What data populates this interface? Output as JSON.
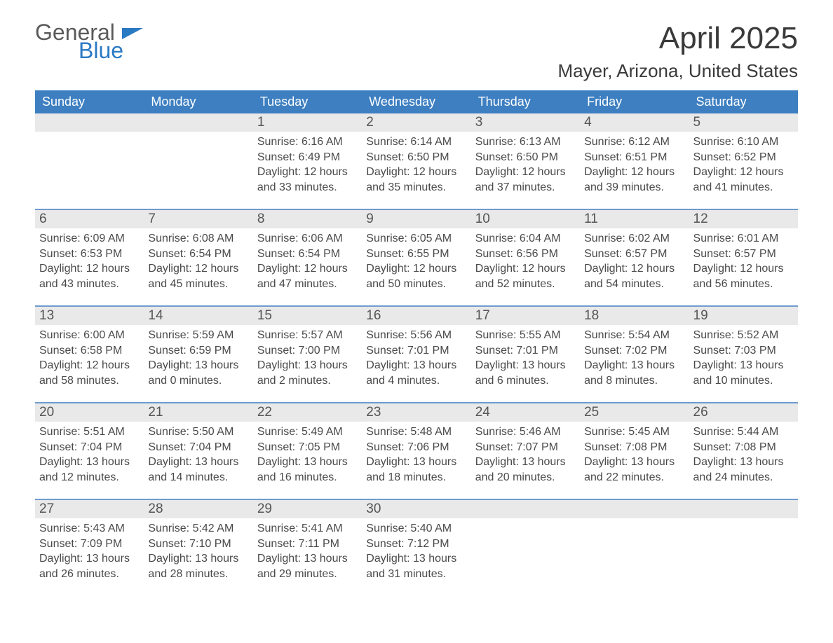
{
  "branding": {
    "logo_word1": "General",
    "logo_word2": "Blue",
    "logo_word1_color": "#5a5a5a",
    "logo_word2_color": "#2a79c3",
    "flag_color": "#2a79c3"
  },
  "header": {
    "title": "April 2025",
    "location": "Mayer, Arizona, United States",
    "title_fontsize": 44,
    "location_fontsize": 26,
    "text_color": "#3a3a3a"
  },
  "colors": {
    "weekday_header_bg": "#3d7fc1",
    "weekday_header_text": "#ffffff",
    "week_top_border": "#6e9bce",
    "daynum_bar_bg": "#e9e9e9",
    "body_text": "#4a4a4a",
    "page_bg": "#ffffff"
  },
  "weekdays": [
    "Sunday",
    "Monday",
    "Tuesday",
    "Wednesday",
    "Thursday",
    "Friday",
    "Saturday"
  ],
  "weeks": [
    [
      {
        "day": "",
        "sunrise": "",
        "sunset": "",
        "daylight": ""
      },
      {
        "day": "",
        "sunrise": "",
        "sunset": "",
        "daylight": ""
      },
      {
        "day": "1",
        "sunrise": "Sunrise: 6:16 AM",
        "sunset": "Sunset: 6:49 PM",
        "daylight": "Daylight: 12 hours and 33 minutes."
      },
      {
        "day": "2",
        "sunrise": "Sunrise: 6:14 AM",
        "sunset": "Sunset: 6:50 PM",
        "daylight": "Daylight: 12 hours and 35 minutes."
      },
      {
        "day": "3",
        "sunrise": "Sunrise: 6:13 AM",
        "sunset": "Sunset: 6:50 PM",
        "daylight": "Daylight: 12 hours and 37 minutes."
      },
      {
        "day": "4",
        "sunrise": "Sunrise: 6:12 AM",
        "sunset": "Sunset: 6:51 PM",
        "daylight": "Daylight: 12 hours and 39 minutes."
      },
      {
        "day": "5",
        "sunrise": "Sunrise: 6:10 AM",
        "sunset": "Sunset: 6:52 PM",
        "daylight": "Daylight: 12 hours and 41 minutes."
      }
    ],
    [
      {
        "day": "6",
        "sunrise": "Sunrise: 6:09 AM",
        "sunset": "Sunset: 6:53 PM",
        "daylight": "Daylight: 12 hours and 43 minutes."
      },
      {
        "day": "7",
        "sunrise": "Sunrise: 6:08 AM",
        "sunset": "Sunset: 6:54 PM",
        "daylight": "Daylight: 12 hours and 45 minutes."
      },
      {
        "day": "8",
        "sunrise": "Sunrise: 6:06 AM",
        "sunset": "Sunset: 6:54 PM",
        "daylight": "Daylight: 12 hours and 47 minutes."
      },
      {
        "day": "9",
        "sunrise": "Sunrise: 6:05 AM",
        "sunset": "Sunset: 6:55 PM",
        "daylight": "Daylight: 12 hours and 50 minutes."
      },
      {
        "day": "10",
        "sunrise": "Sunrise: 6:04 AM",
        "sunset": "Sunset: 6:56 PM",
        "daylight": "Daylight: 12 hours and 52 minutes."
      },
      {
        "day": "11",
        "sunrise": "Sunrise: 6:02 AM",
        "sunset": "Sunset: 6:57 PM",
        "daylight": "Daylight: 12 hours and 54 minutes."
      },
      {
        "day": "12",
        "sunrise": "Sunrise: 6:01 AM",
        "sunset": "Sunset: 6:57 PM",
        "daylight": "Daylight: 12 hours and 56 minutes."
      }
    ],
    [
      {
        "day": "13",
        "sunrise": "Sunrise: 6:00 AM",
        "sunset": "Sunset: 6:58 PM",
        "daylight": "Daylight: 12 hours and 58 minutes."
      },
      {
        "day": "14",
        "sunrise": "Sunrise: 5:59 AM",
        "sunset": "Sunset: 6:59 PM",
        "daylight": "Daylight: 13 hours and 0 minutes."
      },
      {
        "day": "15",
        "sunrise": "Sunrise: 5:57 AM",
        "sunset": "Sunset: 7:00 PM",
        "daylight": "Daylight: 13 hours and 2 minutes."
      },
      {
        "day": "16",
        "sunrise": "Sunrise: 5:56 AM",
        "sunset": "Sunset: 7:01 PM",
        "daylight": "Daylight: 13 hours and 4 minutes."
      },
      {
        "day": "17",
        "sunrise": "Sunrise: 5:55 AM",
        "sunset": "Sunset: 7:01 PM",
        "daylight": "Daylight: 13 hours and 6 minutes."
      },
      {
        "day": "18",
        "sunrise": "Sunrise: 5:54 AM",
        "sunset": "Sunset: 7:02 PM",
        "daylight": "Daylight: 13 hours and 8 minutes."
      },
      {
        "day": "19",
        "sunrise": "Sunrise: 5:52 AM",
        "sunset": "Sunset: 7:03 PM",
        "daylight": "Daylight: 13 hours and 10 minutes."
      }
    ],
    [
      {
        "day": "20",
        "sunrise": "Sunrise: 5:51 AM",
        "sunset": "Sunset: 7:04 PM",
        "daylight": "Daylight: 13 hours and 12 minutes."
      },
      {
        "day": "21",
        "sunrise": "Sunrise: 5:50 AM",
        "sunset": "Sunset: 7:04 PM",
        "daylight": "Daylight: 13 hours and 14 minutes."
      },
      {
        "day": "22",
        "sunrise": "Sunrise: 5:49 AM",
        "sunset": "Sunset: 7:05 PM",
        "daylight": "Daylight: 13 hours and 16 minutes."
      },
      {
        "day": "23",
        "sunrise": "Sunrise: 5:48 AM",
        "sunset": "Sunset: 7:06 PM",
        "daylight": "Daylight: 13 hours and 18 minutes."
      },
      {
        "day": "24",
        "sunrise": "Sunrise: 5:46 AM",
        "sunset": "Sunset: 7:07 PM",
        "daylight": "Daylight: 13 hours and 20 minutes."
      },
      {
        "day": "25",
        "sunrise": "Sunrise: 5:45 AM",
        "sunset": "Sunset: 7:08 PM",
        "daylight": "Daylight: 13 hours and 22 minutes."
      },
      {
        "day": "26",
        "sunrise": "Sunrise: 5:44 AM",
        "sunset": "Sunset: 7:08 PM",
        "daylight": "Daylight: 13 hours and 24 minutes."
      }
    ],
    [
      {
        "day": "27",
        "sunrise": "Sunrise: 5:43 AM",
        "sunset": "Sunset: 7:09 PM",
        "daylight": "Daylight: 13 hours and 26 minutes."
      },
      {
        "day": "28",
        "sunrise": "Sunrise: 5:42 AM",
        "sunset": "Sunset: 7:10 PM",
        "daylight": "Daylight: 13 hours and 28 minutes."
      },
      {
        "day": "29",
        "sunrise": "Sunrise: 5:41 AM",
        "sunset": "Sunset: 7:11 PM",
        "daylight": "Daylight: 13 hours and 29 minutes."
      },
      {
        "day": "30",
        "sunrise": "Sunrise: 5:40 AM",
        "sunset": "Sunset: 7:12 PM",
        "daylight": "Daylight: 13 hours and 31 minutes."
      },
      {
        "day": "",
        "sunrise": "",
        "sunset": "",
        "daylight": ""
      },
      {
        "day": "",
        "sunrise": "",
        "sunset": "",
        "daylight": ""
      },
      {
        "day": "",
        "sunrise": "",
        "sunset": "",
        "daylight": ""
      }
    ]
  ]
}
